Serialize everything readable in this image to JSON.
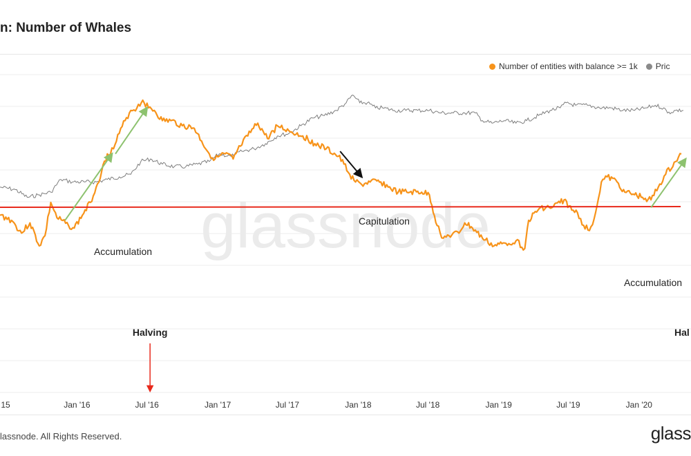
{
  "title": "n: Number of Whales",
  "legend": [
    {
      "label": "Number of entities with balance >= 1k",
      "color": "#f7931a"
    },
    {
      "label": "Pric",
      "color": "#8a8a8a"
    }
  ],
  "watermark": "glassnode",
  "footer": "lassnode. All Rights Reserved.",
  "brand": "glass",
  "colors": {
    "whales": "#f7931a",
    "price": "#7d7d7d",
    "threshold": "#e8291b",
    "accumulation_arrow": "#8dc26f",
    "capitulation_arrow": "#111111",
    "halving_arrow": "#e8291b",
    "grid": "#ececec"
  },
  "chart_data": {
    "type": "line",
    "x_ticks": [
      "15",
      "Jan '16",
      "Jul '16",
      "Jan '17",
      "Jul '17",
      "Jan '18",
      "Jul '18",
      "Jan '19",
      "Jul '19",
      "Jan '20"
    ],
    "x_tick_dates": [
      "2015-07-01",
      "2016-01-01",
      "2016-07-01",
      "2017-01-01",
      "2017-07-01",
      "2018-01-01",
      "2018-07-01",
      "2019-01-01",
      "2019-07-01",
      "2020-01-01"
    ],
    "x_range": [
      "2015-06-15",
      "2020-05-15"
    ],
    "y_relative_range": [
      0,
      100
    ],
    "grid": true,
    "legend_position": "top-right",
    "series": [
      {
        "name": "Number of entities with balance >= 1k",
        "color": "#f7931a",
        "points": [
          [
            "2015-06-15",
            55
          ],
          [
            "2015-07-15",
            53
          ],
          [
            "2015-08-10",
            48
          ],
          [
            "2015-09-01",
            52
          ],
          [
            "2015-09-25",
            43
          ],
          [
            "2015-10-10",
            47
          ],
          [
            "2015-10-25",
            60
          ],
          [
            "2015-11-10",
            54
          ],
          [
            "2015-12-10",
            51
          ],
          [
            "2015-12-25",
            50
          ],
          [
            "2016-01-15",
            55
          ],
          [
            "2016-02-05",
            60
          ],
          [
            "2016-02-20",
            66
          ],
          [
            "2016-03-05",
            72
          ],
          [
            "2016-03-20",
            79
          ],
          [
            "2016-04-05",
            81
          ],
          [
            "2016-04-20",
            87
          ],
          [
            "2016-05-05",
            92
          ],
          [
            "2016-05-20",
            96
          ],
          [
            "2016-06-05",
            97
          ],
          [
            "2016-06-20",
            100
          ],
          [
            "2016-07-05",
            97
          ],
          [
            "2016-07-20",
            96
          ],
          [
            "2016-08-10",
            92
          ],
          [
            "2016-09-01",
            92
          ],
          [
            "2016-10-01",
            90
          ],
          [
            "2016-11-01",
            89
          ],
          [
            "2016-11-20",
            84
          ],
          [
            "2016-12-10",
            79
          ],
          [
            "2016-12-25",
            77
          ],
          [
            "2017-01-20",
            79
          ],
          [
            "2017-02-10",
            77
          ],
          [
            "2017-03-01",
            82
          ],
          [
            "2017-03-20",
            86
          ],
          [
            "2017-04-15",
            91
          ],
          [
            "2017-05-10",
            85
          ],
          [
            "2017-06-05",
            90
          ],
          [
            "2017-07-05",
            88
          ],
          [
            "2017-08-10",
            86
          ],
          [
            "2017-09-10",
            83
          ],
          [
            "2017-10-10",
            81
          ],
          [
            "2017-11-10",
            78
          ],
          [
            "2017-11-25",
            75
          ],
          [
            "2017-12-10",
            71
          ],
          [
            "2017-12-25",
            68
          ],
          [
            "2018-01-10",
            67
          ],
          [
            "2018-02-01",
            68
          ],
          [
            "2018-03-01",
            68
          ],
          [
            "2018-03-20",
            66
          ],
          [
            "2018-04-15",
            64
          ],
          [
            "2018-05-15",
            64
          ],
          [
            "2018-06-15",
            64
          ],
          [
            "2018-07-05",
            63
          ],
          [
            "2018-07-25",
            51
          ],
          [
            "2018-08-10",
            46
          ],
          [
            "2018-08-25",
            47
          ],
          [
            "2018-09-20",
            48
          ],
          [
            "2018-10-05",
            52
          ],
          [
            "2018-10-25",
            50
          ],
          [
            "2018-11-20",
            46
          ],
          [
            "2018-12-20",
            43
          ],
          [
            "2019-01-20",
            44
          ],
          [
            "2019-02-15",
            45
          ],
          [
            "2019-03-10",
            42
          ],
          [
            "2019-03-20",
            53
          ],
          [
            "2019-04-20",
            58
          ],
          [
            "2019-05-20",
            58
          ],
          [
            "2019-06-20",
            61
          ],
          [
            "2019-07-10",
            57
          ],
          [
            "2019-07-25",
            56
          ],
          [
            "2019-08-10",
            51
          ],
          [
            "2019-08-25",
            49
          ],
          [
            "2019-09-10",
            56
          ],
          [
            "2019-09-25",
            68
          ],
          [
            "2019-10-10",
            70
          ],
          [
            "2019-11-05",
            68
          ],
          [
            "2019-11-25",
            64
          ],
          [
            "2019-12-20",
            63
          ],
          [
            "2020-01-10",
            62
          ],
          [
            "2020-02-01",
            61
          ],
          [
            "2020-02-20",
            66
          ],
          [
            "2020-03-10",
            71
          ],
          [
            "2020-04-05",
            76
          ],
          [
            "2020-04-20",
            79
          ]
        ]
      },
      {
        "name": "Pric",
        "color": "#8a8a8a",
        "points": [
          [
            "2015-06-15",
            66
          ],
          [
            "2015-07-25",
            65
          ],
          [
            "2015-08-25",
            62
          ],
          [
            "2015-09-25",
            63
          ],
          [
            "2015-10-25",
            64
          ],
          [
            "2015-11-20",
            69
          ],
          [
            "2015-12-20",
            68
          ],
          [
            "2016-01-20",
            68
          ],
          [
            "2016-02-20",
            68
          ],
          [
            "2016-03-20",
            69
          ],
          [
            "2016-04-20",
            70
          ],
          [
            "2016-05-20",
            71
          ],
          [
            "2016-06-15",
            76
          ],
          [
            "2016-07-10",
            77
          ],
          [
            "2016-08-10",
            75
          ],
          [
            "2016-09-10",
            74
          ],
          [
            "2016-10-10",
            74
          ],
          [
            "2016-11-10",
            75
          ],
          [
            "2016-12-10",
            76
          ],
          [
            "2017-01-05",
            79
          ],
          [
            "2017-02-05",
            78
          ],
          [
            "2017-03-05",
            80
          ],
          [
            "2017-04-05",
            81
          ],
          [
            "2017-05-05",
            83
          ],
          [
            "2017-06-05",
            86
          ],
          [
            "2017-07-05",
            87
          ],
          [
            "2017-08-05",
            90
          ],
          [
            "2017-09-05",
            93
          ],
          [
            "2017-10-05",
            94
          ],
          [
            "2017-11-05",
            96
          ],
          [
            "2017-12-01",
            99
          ],
          [
            "2017-12-18",
            102
          ],
          [
            "2018-01-05",
            99
          ],
          [
            "2018-01-25",
            99
          ],
          [
            "2018-02-15",
            97
          ],
          [
            "2018-03-05",
            97
          ],
          [
            "2018-04-05",
            96
          ],
          [
            "2018-05-05",
            96
          ],
          [
            "2018-06-05",
            96
          ],
          [
            "2018-07-05",
            96
          ],
          [
            "2018-08-05",
            95
          ],
          [
            "2018-09-05",
            95
          ],
          [
            "2018-10-05",
            95
          ],
          [
            "2018-11-01",
            95
          ],
          [
            "2018-11-20",
            92
          ],
          [
            "2018-12-15",
            91
          ],
          [
            "2019-01-15",
            92
          ],
          [
            "2019-02-15",
            91
          ],
          [
            "2019-03-15",
            92
          ],
          [
            "2019-04-15",
            94
          ],
          [
            "2019-05-15",
            96
          ],
          [
            "2019-06-10",
            97
          ],
          [
            "2019-06-26",
            99
          ],
          [
            "2019-07-20",
            98
          ],
          [
            "2019-08-20",
            98
          ],
          [
            "2019-09-20",
            97
          ],
          [
            "2019-10-20",
            97
          ],
          [
            "2019-11-20",
            96
          ],
          [
            "2019-12-20",
            96
          ],
          [
            "2020-01-20",
            97
          ],
          [
            "2020-02-12",
            98
          ],
          [
            "2020-03-05",
            97
          ],
          [
            "2020-03-15",
            95
          ],
          [
            "2020-04-05",
            96
          ],
          [
            "2020-04-25",
            96
          ]
        ]
      }
    ],
    "threshold_line": {
      "color": "#e8291b"
    },
    "annotations": [
      {
        "text": "Accumulation",
        "type": "arrow",
        "color": "#8dc26f",
        "from": [
          "2015-12-01",
          53
        ],
        "to": [
          "2016-04-01",
          79
        ]
      },
      {
        "text": "",
        "type": "arrow",
        "color": "#8dc26f",
        "from": [
          "2016-04-10",
          79
        ],
        "to": [
          "2016-07-01",
          97
        ]
      },
      {
        "text": "Capitulation",
        "type": "arrow",
        "color": "#111111",
        "from": [
          "2017-11-15",
          80
        ],
        "to": [
          "2018-01-10",
          70
        ]
      },
      {
        "text": "Accumulation",
        "type": "arrow",
        "color": "#8dc26f",
        "from": [
          "2020-02-01",
          58
        ],
        "to": [
          "2020-05-01",
          77
        ]
      },
      {
        "text": "Halving",
        "type": "marker",
        "color": "#e8291b",
        "at": "2016-07-09"
      },
      {
        "text": "Hal",
        "type": "marker",
        "color": "#e8291b",
        "at": "2020-05-11"
      }
    ]
  }
}
